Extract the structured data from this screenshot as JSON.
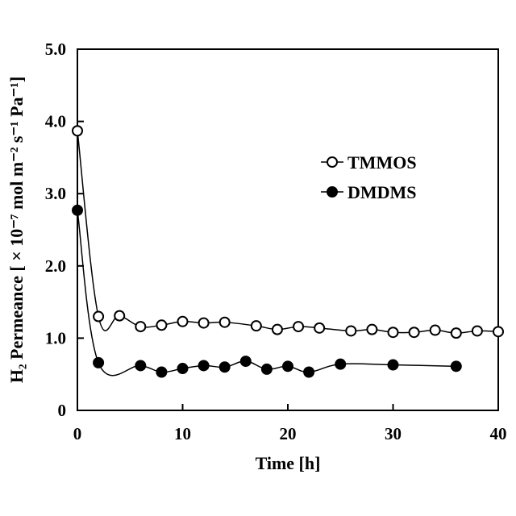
{
  "chart_data": {
    "type": "scatter",
    "xlabel": "Time [h]",
    "ylabel": "H₂ Permeance [ × 10⁻⁷ mol m⁻² s⁻¹ Pa⁻¹]",
    "xlim": [
      0,
      40
    ],
    "ylim": [
      0,
      5
    ],
    "x_ticks": [
      "0",
      "10",
      "20",
      "30",
      "40"
    ],
    "y_ticks": [
      "0",
      "1.0",
      "2.0",
      "3.0",
      "4.0",
      "5.0"
    ],
    "grid": false,
    "legend_position": "right",
    "series": [
      {
        "name": "TMMOS",
        "marker": "open-circle",
        "color": "#000000",
        "points": [
          [
            0,
            3.87
          ],
          [
            2,
            1.3
          ],
          [
            4,
            1.31
          ],
          [
            6,
            1.16
          ],
          [
            8,
            1.18
          ],
          [
            10,
            1.23
          ],
          [
            12,
            1.21
          ],
          [
            14,
            1.22
          ],
          [
            17,
            1.17
          ],
          [
            19,
            1.12
          ],
          [
            21,
            1.16
          ],
          [
            23,
            1.14
          ],
          [
            26,
            1.1
          ],
          [
            28,
            1.12
          ],
          [
            30,
            1.08
          ],
          [
            32,
            1.08
          ],
          [
            34,
            1.11
          ],
          [
            36,
            1.07
          ],
          [
            38,
            1.1
          ],
          [
            40,
            1.09
          ]
        ]
      },
      {
        "name": "DMDMS",
        "marker": "filled-circle",
        "color": "#000000",
        "points": [
          [
            0,
            2.77
          ],
          [
            2,
            0.66
          ],
          [
            6,
            0.62
          ],
          [
            8,
            0.53
          ],
          [
            10,
            0.58
          ],
          [
            12,
            0.62
          ],
          [
            14,
            0.6
          ],
          [
            16,
            0.68
          ],
          [
            18,
            0.57
          ],
          [
            20,
            0.61
          ],
          [
            22,
            0.53
          ],
          [
            25,
            0.64
          ],
          [
            30,
            0.63
          ],
          [
            36,
            0.61
          ]
        ]
      }
    ]
  }
}
